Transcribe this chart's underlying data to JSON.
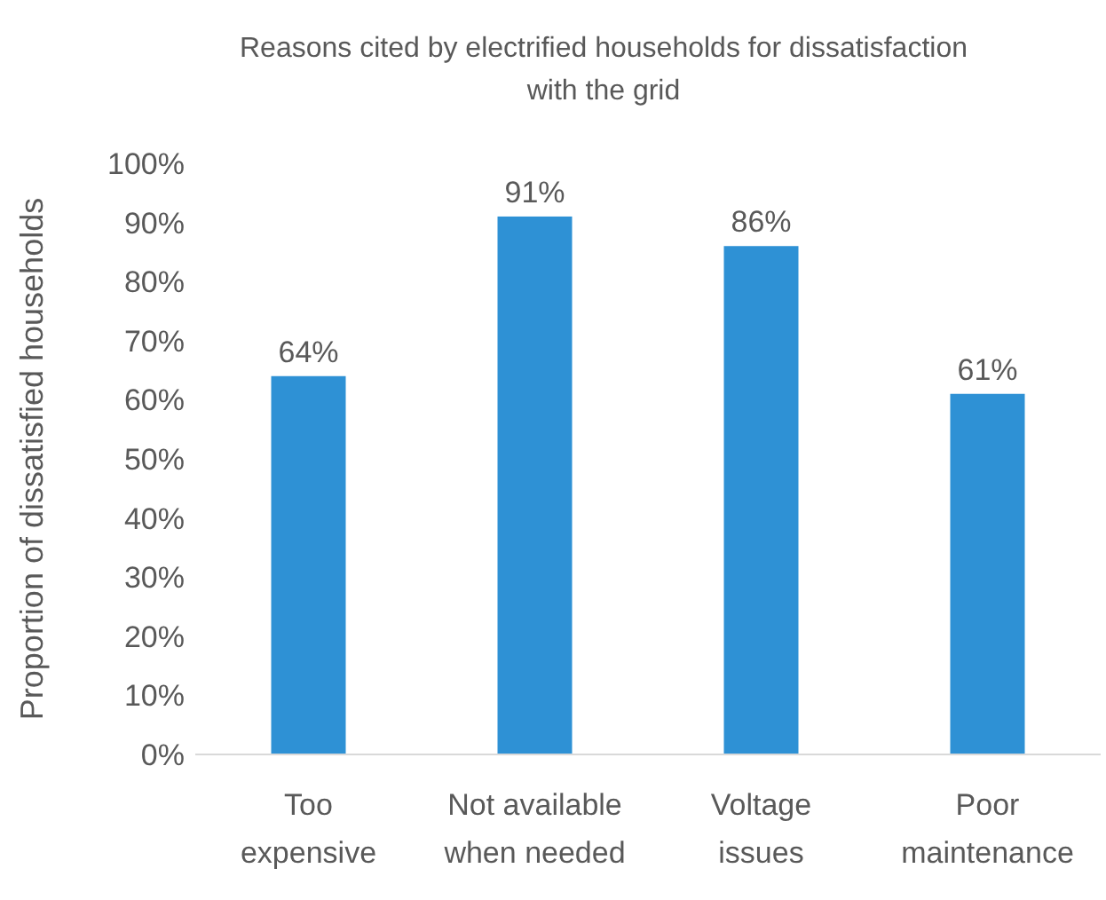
{
  "chart_data": {
    "type": "bar",
    "title": "Reasons cited by electrified households for dissatisfaction with the grid",
    "ylabel": "Proportion of dissatisfied households",
    "categories": [
      "Too expensive",
      "Not available when needed",
      "Voltage issues",
      "Poor maintenance"
    ],
    "values": [
      64,
      91,
      86,
      61
    ],
    "value_labels": [
      "64%",
      "91%",
      "86%",
      "61%"
    ],
    "color": "#2e91d5",
    "ylim": [
      0,
      100
    ],
    "yticks": [
      {
        "value": 0,
        "label": "0%"
      },
      {
        "value": 10,
        "label": "10%"
      },
      {
        "value": 20,
        "label": "20%"
      },
      {
        "value": 30,
        "label": "30%"
      },
      {
        "value": 40,
        "label": "40%"
      },
      {
        "value": 50,
        "label": "50%"
      },
      {
        "value": 60,
        "label": "60%"
      },
      {
        "value": 70,
        "label": "70%"
      },
      {
        "value": 80,
        "label": "80%"
      },
      {
        "value": 90,
        "label": "90%"
      },
      {
        "value": 100,
        "label": "100%"
      }
    ],
    "grid": false
  }
}
